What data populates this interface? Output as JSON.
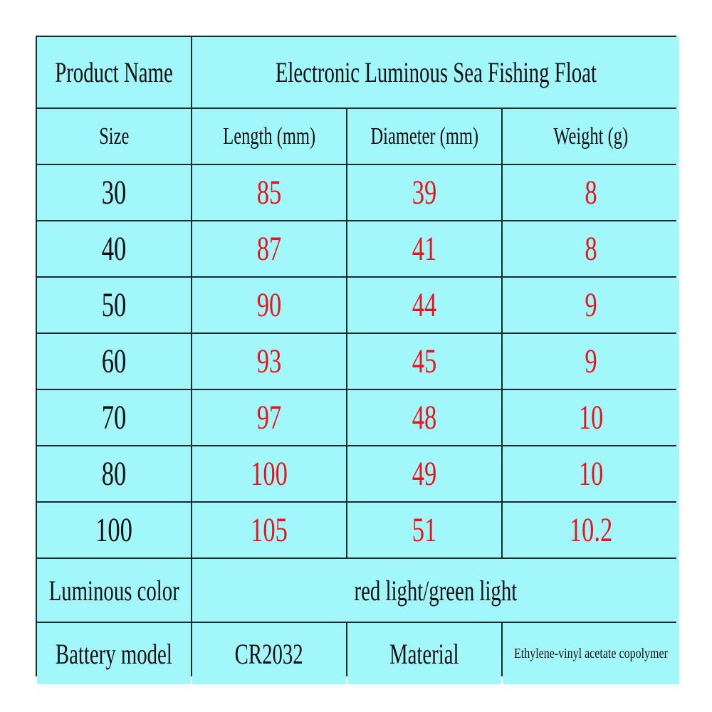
{
  "product_name_label": "Product Name",
  "product_name": "Electronic Luminous Sea Fishing Float",
  "headers": [
    "Size",
    "Length (mm)",
    "Diameter (mm)",
    "Weight (g)"
  ],
  "rows": [
    [
      "30",
      "85",
      "39",
      "8"
    ],
    [
      "40",
      "87",
      "41",
      "8"
    ],
    [
      "50",
      "90",
      "44",
      "9"
    ],
    [
      "60",
      "93",
      "45",
      "9"
    ],
    [
      "70",
      "97",
      "48",
      "10"
    ],
    [
      "80",
      "100",
      "49",
      "10"
    ],
    [
      "100",
      "105",
      "51",
      "10.2"
    ]
  ],
  "luminous_color_label": "Luminous color",
  "luminous_color": "red light/green light",
  "battery_label": "Battery model",
  "battery": "CR2032",
  "material_label": "Material",
  "material": "Ethylene-vinyl acetate copolymer",
  "colors": {
    "background": "#a2f7fb",
    "value_text": "#e8161c",
    "border": "#1c2a2a"
  }
}
